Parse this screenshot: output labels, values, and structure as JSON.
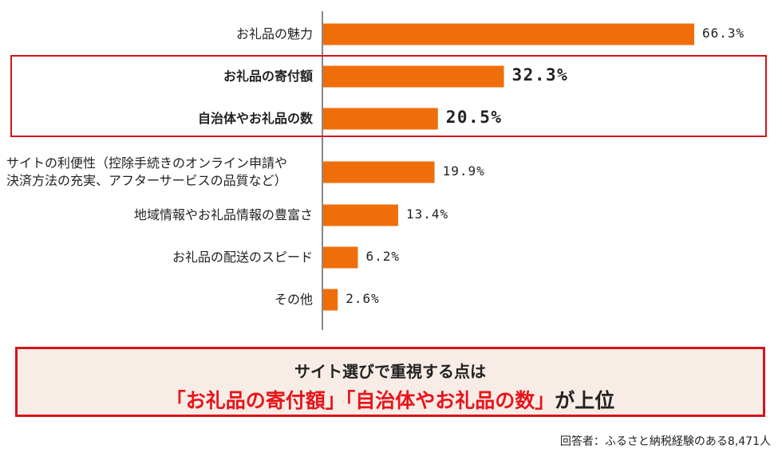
{
  "chart_data": {
    "type": "bar",
    "orientation": "horizontal",
    "categories": [
      "お礼品の魅力",
      "お礼品の寄付額",
      "自治体やお礼品の数",
      "サイトの利便性（控除手続きのオンライン申請や決済方法の充実、アフターサービスの品質など）",
      "地域情報やお礼品情報の豊富さ",
      "お礼品の配送のスピード",
      "その他"
    ],
    "category_lines": [
      [
        "お礼品の魅力"
      ],
      [
        "お礼品の寄付額"
      ],
      [
        "自治体やお礼品の数"
      ],
      [
        "サイトの利便性（控除手続きのオンライン申請や",
        "決済方法の充実、アフターサービスの品質など）"
      ],
      [
        "地域情報やお礼品情報の豊富さ"
      ],
      [
        "お礼品の配送のスピード"
      ],
      [
        "その他"
      ]
    ],
    "values": [
      66.3,
      32.3,
      20.5,
      19.9,
      13.4,
      6.2,
      2.6
    ],
    "value_labels": [
      "66.3%",
      "32.3%",
      "20.5%",
      "19.9%",
      "13.4%",
      "6.2%",
      "2.6%"
    ],
    "highlighted": [
      false,
      true,
      true,
      false,
      false,
      false,
      false
    ],
    "xlim": [
      0,
      70
    ],
    "grid": false,
    "bar_color": "#f06e0a",
    "axis_color": "#888888",
    "highlight_color": "#d7131b"
  },
  "summary": {
    "line1": "サイト選びで重視する点は",
    "highlight": "「お礼品の寄付額」「自治体やお礼品の数」",
    "suffix": "が上位"
  },
  "footnote": "回答者：ふるさと納税経験のある8,471人"
}
